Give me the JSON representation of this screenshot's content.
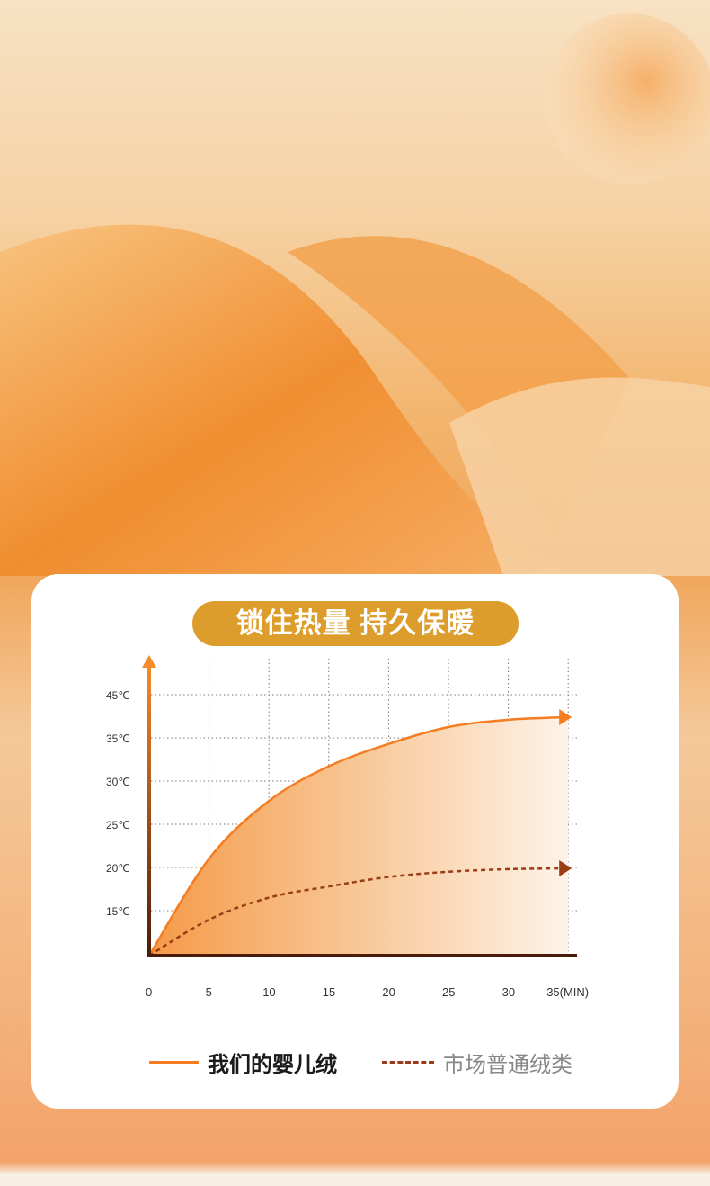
{
  "banner": {
    "title": "锁住热量 持久保暖"
  },
  "chart_data": {
    "type": "area",
    "title": "锁住热量 持久保暖",
    "x": [
      0,
      5,
      10,
      15,
      20,
      25,
      30,
      35
    ],
    "x_tick_labels": [
      "0",
      "5",
      "10",
      "15",
      "20",
      "25",
      "30",
      "35(MIN)"
    ],
    "y_tick_labels": [
      "15℃",
      "20℃",
      "25℃",
      "30℃",
      "35℃",
      "45℃"
    ],
    "y_tick_values": [
      15,
      20,
      25,
      30,
      35,
      45
    ],
    "y_baseline": 10,
    "grid": true,
    "legend_position": "bottom",
    "series": [
      {
        "name": "我们的婴儿绒",
        "style": "solid",
        "color": "#f57c20",
        "values": [
          10,
          21,
          27.7,
          31.7,
          34.3,
          37.5,
          39.2,
          39.8
        ]
      },
      {
        "name": "市场普通绒类",
        "style": "dashed",
        "color": "#9a3d16",
        "values": [
          10,
          14,
          16.5,
          17.8,
          18.9,
          19.5,
          19.8,
          19.9
        ]
      }
    ]
  }
}
